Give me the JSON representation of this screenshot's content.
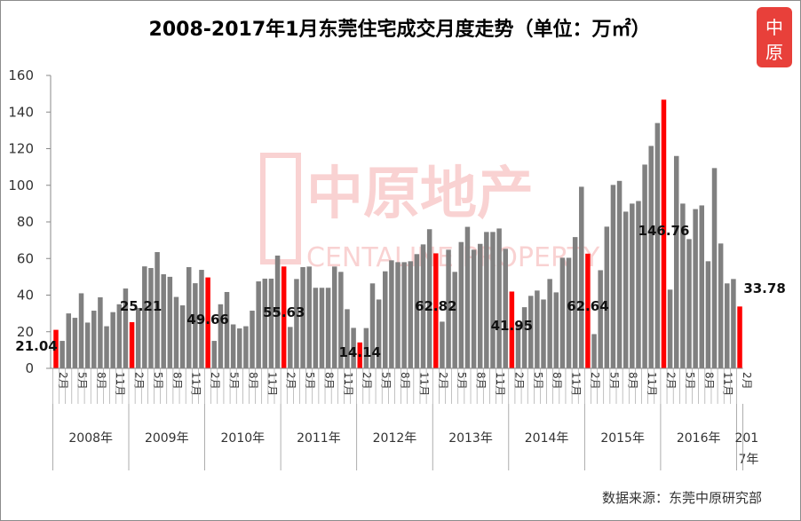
{
  "chart_data": {
    "type": "bar",
    "title": "2008-2017年1月东莞住宅成交月度走势（单位：万㎡）",
    "xlabel": "",
    "ylabel": "",
    "ylim": [
      0,
      160
    ],
    "yticks": [
      0,
      20,
      40,
      60,
      80,
      100,
      120,
      140,
      160
    ],
    "grid": false,
    "years": [
      "2008年",
      "2009年",
      "2010年",
      "2011年",
      "2012年",
      "2013年",
      "2014年",
      "2015年",
      "2016年",
      "2017年"
    ],
    "month_tick_labels": [
      "2月",
      "5月",
      "8月",
      "11月"
    ],
    "colors": {
      "normal": "#808080",
      "january": "#ff0000"
    },
    "values": [
      21.04,
      15,
      30,
      27.6,
      41,
      25,
      31.5,
      38.8,
      23,
      30.7,
      35,
      43.6,
      25.21,
      33,
      55.7,
      54.8,
      63.5,
      51.4,
      50,
      39,
      34.4,
      55.3,
      46.5,
      53.8,
      49.66,
      15,
      35,
      41.7,
      24,
      21.8,
      23,
      31.5,
      47.5,
      49,
      49,
      61.6,
      55.63,
      22.6,
      48.8,
      55.3,
      55.6,
      44,
      44,
      44,
      55.6,
      52.7,
      32.3,
      22.1,
      14.14,
      22,
      46.4,
      37.6,
      53,
      59,
      58,
      58,
      58.5,
      62.4,
      67.7,
      76,
      62.82,
      25.5,
      64.8,
      52.7,
      69,
      77.3,
      64.8,
      68,
      74.5,
      74.5,
      76.4,
      65.3,
      41.95,
      24,
      33.4,
      39.6,
      42.5,
      37.6,
      48.8,
      41.5,
      60.4,
      60.4,
      71.7,
      99.2,
      62.64,
      18.7,
      53.6,
      77.4,
      100.2,
      102.4,
      85.6,
      90,
      91.4,
      111.3,
      121.5,
      134,
      146.76,
      43,
      116,
      90,
      70.6,
      87,
      89,
      58.5,
      109.4,
      68.2,
      46.4,
      48.8,
      33.78
    ],
    "data_labels": [
      "21.04",
      "25.21",
      "49.66",
      "55.63",
      "14.14",
      "62.82",
      "41.95",
      "62.64",
      "146.76",
      "33.78"
    ]
  },
  "watermark": {
    "cn": "中原地产",
    "en": "CENTALINE PROPERTY"
  },
  "logo": {
    "text": "中原",
    "color": "#e8403a"
  },
  "source": "数据来源：东莞中原研究部"
}
